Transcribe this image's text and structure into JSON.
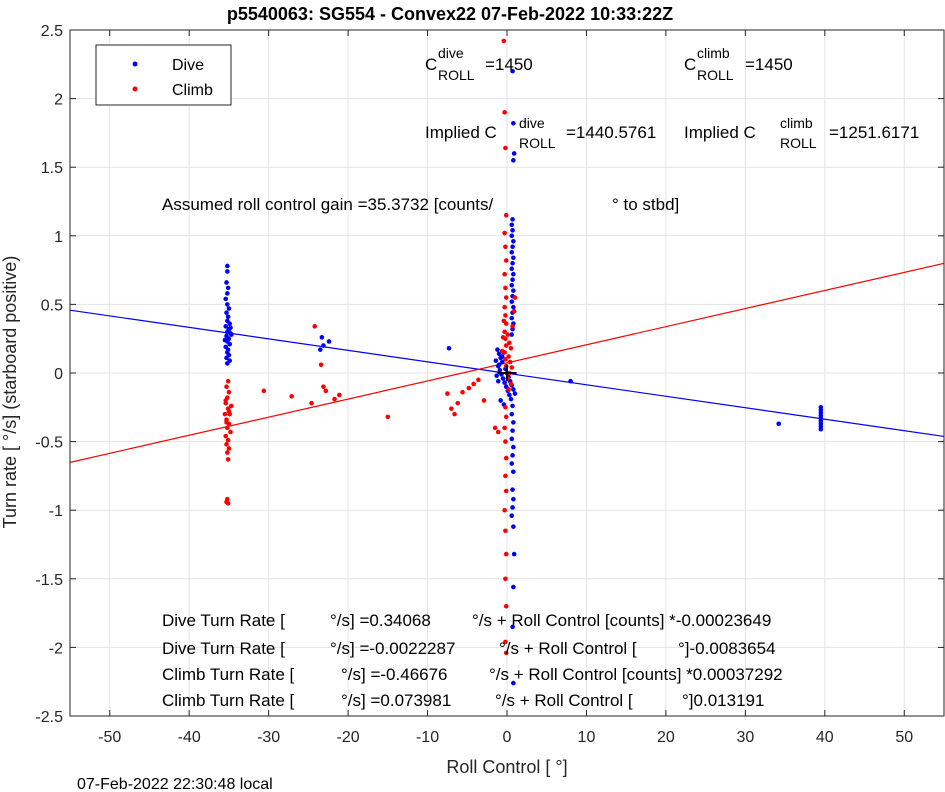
{
  "chart_data": {
    "type": "scatter",
    "title": "p5540063: SG554 - Convex22 07-Feb-2022 10:33:22Z",
    "xlabel": "Roll Control [   °]",
    "ylabel": "Turn rate [   °/s] (starboard positive)",
    "xlim": [
      -55,
      55
    ],
    "ylim": [
      -2.5,
      2.5
    ],
    "xticks": [
      -50,
      -40,
      -30,
      -20,
      -10,
      0,
      10,
      20,
      30,
      40,
      50
    ],
    "yticks": [
      -2.5,
      -2,
      -1.5,
      -1,
      -0.5,
      0,
      0.5,
      1,
      1.5,
      2,
      2.5
    ],
    "xtick_labels": [
      "-50",
      "-40",
      "-30",
      "-20",
      "-10",
      "0",
      "10",
      "20",
      "30",
      "40",
      "50"
    ],
    "ytick_labels": [
      "-2.5",
      "-2",
      "-1.5",
      "-1",
      "-0.5",
      "0",
      "0.5",
      "1",
      "1.5",
      "2",
      "2.5"
    ],
    "grid": true,
    "legend_position": "top-left",
    "footer": "07-Feb-2022 22:30:48 local",
    "legend": [
      {
        "name": "Dive",
        "color": "#0000ff"
      },
      {
        "name": "Climb",
        "color": "#ff0000"
      }
    ],
    "series": [
      {
        "name": "Dive",
        "color": "#0000ff",
        "points": [
          [
            -35.2,
            0.78
          ],
          [
            -35.2,
            0.74
          ],
          [
            -35.3,
            0.66
          ],
          [
            -35.1,
            0.62
          ],
          [
            -35.2,
            0.58
          ],
          [
            -35.4,
            0.54
          ],
          [
            -35.2,
            0.5
          ],
          [
            -35.0,
            0.47
          ],
          [
            -35.3,
            0.44
          ],
          [
            -35.1,
            0.41
          ],
          [
            -35.2,
            0.38
          ],
          [
            -34.9,
            0.36
          ],
          [
            -35.4,
            0.34
          ],
          [
            -35.0,
            0.32
          ],
          [
            -35.2,
            0.3
          ],
          [
            -34.8,
            0.29
          ],
          [
            -35.3,
            0.27
          ],
          [
            -35.0,
            0.25
          ],
          [
            -35.2,
            0.23
          ],
          [
            -34.9,
            0.21
          ],
          [
            -35.4,
            0.19
          ],
          [
            -35.1,
            0.17
          ],
          [
            -35.2,
            0.15
          ],
          [
            -35.0,
            0.13
          ],
          [
            -35.3,
            0.11
          ],
          [
            -34.8,
            0.33
          ],
          [
            -34.7,
            0.28
          ],
          [
            -35.5,
            0.24
          ],
          [
            -34.9,
            0.09
          ],
          [
            -35.2,
            0.07
          ],
          [
            -23.3,
            0.26
          ],
          [
            -23.1,
            0.2
          ],
          [
            -23.5,
            0.17
          ],
          [
            -22.4,
            0.23
          ],
          [
            -7.3,
            0.18
          ],
          [
            -1.2,
            0.17
          ],
          [
            -1.0,
            0.14
          ],
          [
            -0.8,
            0.11
          ],
          [
            -0.6,
            0.08
          ],
          [
            -1.1,
            0.05
          ],
          [
            -0.9,
            0.02
          ],
          [
            -0.7,
            -0.01
          ],
          [
            -0.5,
            -0.04
          ],
          [
            -0.3,
            -0.07
          ],
          [
            -0.1,
            -0.1
          ],
          [
            0.1,
            -0.13
          ],
          [
            0.3,
            -0.16
          ],
          [
            0.5,
            -0.19
          ],
          [
            -1.3,
            -0.02
          ],
          [
            -1.0,
            0.06
          ],
          [
            -0.6,
            0.12
          ],
          [
            -0.4,
            0.15
          ],
          [
            -0.2,
            0.03
          ],
          [
            0.0,
            0.0
          ],
          [
            0.2,
            -0.03
          ],
          [
            0.4,
            -0.06
          ],
          [
            0.6,
            -0.09
          ],
          [
            0.8,
            -0.12
          ],
          [
            1.0,
            -0.15
          ],
          [
            -0.8,
            -0.2
          ],
          [
            -0.4,
            -0.23
          ],
          [
            -1.4,
            0.09
          ],
          [
            -1.1,
            -0.06
          ],
          [
            0.7,
            2.2
          ],
          [
            0.8,
            1.82
          ],
          [
            0.9,
            1.6
          ],
          [
            0.8,
            1.55
          ],
          [
            0.7,
            1.12
          ],
          [
            0.6,
            1.08
          ],
          [
            0.7,
            1.04
          ],
          [
            0.6,
            1.0
          ],
          [
            0.8,
            0.96
          ],
          [
            0.7,
            0.92
          ],
          [
            0.6,
            0.88
          ],
          [
            0.8,
            0.84
          ],
          [
            0.7,
            0.8
          ],
          [
            0.6,
            0.76
          ],
          [
            0.8,
            0.72
          ],
          [
            0.7,
            0.68
          ],
          [
            0.6,
            0.64
          ],
          [
            0.8,
            0.6
          ],
          [
            0.7,
            0.56
          ],
          [
            0.6,
            0.52
          ],
          [
            0.8,
            0.48
          ],
          [
            0.7,
            0.44
          ],
          [
            0.6,
            0.4
          ],
          [
            0.8,
            0.36
          ],
          [
            0.7,
            0.32
          ],
          [
            0.6,
            0.28
          ],
          [
            0.7,
            -0.24
          ],
          [
            0.6,
            -0.3
          ],
          [
            0.8,
            -0.36
          ],
          [
            0.7,
            -0.42
          ],
          [
            0.6,
            -0.48
          ],
          [
            0.8,
            -0.54
          ],
          [
            0.7,
            -0.6
          ],
          [
            0.6,
            -0.66
          ],
          [
            0.8,
            -0.72
          ],
          [
            0.7,
            -0.85
          ],
          [
            0.8,
            -0.92
          ],
          [
            0.7,
            -0.98
          ],
          [
            0.6,
            -1.04
          ],
          [
            0.8,
            -1.12
          ],
          [
            0.9,
            -1.32
          ],
          [
            0.8,
            -1.56
          ],
          [
            0.7,
            -1.85
          ],
          [
            0.8,
            -2.26
          ],
          [
            8.0,
            -0.06
          ],
          [
            34.2,
            -0.37
          ],
          [
            39.5,
            -0.25
          ],
          [
            39.5,
            -0.27
          ],
          [
            39.5,
            -0.29
          ],
          [
            39.5,
            -0.31
          ],
          [
            39.5,
            -0.33
          ],
          [
            39.5,
            -0.35
          ],
          [
            39.5,
            -0.37
          ],
          [
            39.5,
            -0.39
          ],
          [
            39.5,
            -0.41
          ]
        ],
        "fit": {
          "slope": -0.0083654,
          "intercept": -0.0022287
        }
      },
      {
        "name": "Climb",
        "color": "#ff0000",
        "points": [
          [
            -35.1,
            -0.06
          ],
          [
            -35.3,
            -0.1
          ],
          [
            -35.0,
            -0.14
          ],
          [
            -35.2,
            -0.18
          ],
          [
            -35.4,
            -0.22
          ],
          [
            -35.1,
            -0.26
          ],
          [
            -34.9,
            -0.3
          ],
          [
            -35.3,
            -0.34
          ],
          [
            -35.0,
            -0.37
          ],
          [
            -35.2,
            -0.4
          ],
          [
            -34.8,
            -0.43
          ],
          [
            -35.4,
            -0.46
          ],
          [
            -35.1,
            -0.49
          ],
          [
            -35.3,
            -0.52
          ],
          [
            -35.0,
            -0.55
          ],
          [
            -35.2,
            -0.58
          ],
          [
            -35.1,
            -0.63
          ],
          [
            -35.3,
            -0.36
          ],
          [
            -35.5,
            -0.3
          ],
          [
            -34.7,
            -0.24
          ],
          [
            -35.2,
            -0.92
          ],
          [
            -35.1,
            -0.95
          ],
          [
            -35.3,
            -0.94
          ],
          [
            -35.0,
            -0.28
          ],
          [
            -35.4,
            -0.2
          ],
          [
            -30.6,
            -0.13
          ],
          [
            -27.1,
            -0.17
          ],
          [
            -24.6,
            -0.22
          ],
          [
            -24.2,
            0.34
          ],
          [
            -23.4,
            0.06
          ],
          [
            -23.1,
            -0.1
          ],
          [
            -22.8,
            -0.13
          ],
          [
            -21.7,
            -0.19
          ],
          [
            -21.1,
            -0.16
          ],
          [
            -15.0,
            -0.32
          ],
          [
            -7.5,
            -0.15
          ],
          [
            -7.0,
            -0.26
          ],
          [
            -6.6,
            -0.3
          ],
          [
            -6.2,
            -0.22
          ],
          [
            -5.6,
            -0.14
          ],
          [
            -4.8,
            -0.11
          ],
          [
            -4.2,
            -0.08
          ],
          [
            -3.6,
            -0.05
          ],
          [
            -2.9,
            -0.2
          ],
          [
            -1.5,
            -0.4
          ],
          [
            -1.1,
            -0.43
          ],
          [
            -0.4,
            2.42
          ],
          [
            -0.3,
            1.9
          ],
          [
            -0.2,
            1.64
          ],
          [
            -0.1,
            1.15
          ],
          [
            -0.3,
            1.02
          ],
          [
            -0.2,
            0.92
          ],
          [
            -0.1,
            0.82
          ],
          [
            -0.3,
            0.72
          ],
          [
            -0.2,
            0.62
          ],
          [
            -0.1,
            0.55
          ],
          [
            -0.3,
            0.48
          ],
          [
            -0.2,
            0.42
          ],
          [
            -0.1,
            0.36
          ],
          [
            -0.3,
            0.3
          ],
          [
            -0.2,
            0.25
          ],
          [
            -0.1,
            0.2
          ],
          [
            -0.3,
            0.15
          ],
          [
            -0.2,
            0.1
          ],
          [
            -0.1,
            0.05
          ],
          [
            0.1,
            0.28
          ],
          [
            0.3,
            0.22
          ],
          [
            0.5,
            0.18
          ],
          [
            0.2,
            0.12
          ],
          [
            0.4,
            0.08
          ],
          [
            0.6,
            0.04
          ],
          [
            0.3,
            0.0
          ],
          [
            0.1,
            -0.04
          ],
          [
            0.5,
            -0.08
          ],
          [
            0.2,
            -0.12
          ],
          [
            -0.4,
            0.38
          ],
          [
            -0.5,
            0.26
          ],
          [
            -0.6,
            0.16
          ],
          [
            0.7,
            0.34
          ],
          [
            0.9,
            0.45
          ],
          [
            1.0,
            0.55
          ],
          [
            -0.2,
            -0.25
          ],
          [
            -0.1,
            -0.32
          ],
          [
            -0.3,
            -0.4
          ],
          [
            -0.2,
            -0.5
          ],
          [
            -0.1,
            -0.62
          ],
          [
            -0.2,
            -0.75
          ],
          [
            -0.1,
            -0.86
          ],
          [
            -0.3,
            -1.0
          ],
          [
            -0.2,
            -1.15
          ],
          [
            -0.1,
            -1.32
          ],
          [
            -0.2,
            -1.5
          ],
          [
            -0.1,
            -1.7
          ],
          [
            -0.2,
            -1.96
          ],
          [
            -0.1,
            -2.04
          ]
        ],
        "fit": {
          "slope": 0.013191,
          "intercept": 0.073981
        }
      }
    ],
    "annotations": {
      "c_dive_prefix": "C",
      "c_dive_sup": "dive",
      "c_dive_sub": "ROLL",
      "c_dive_value": "=1450",
      "c_climb_prefix": "C",
      "c_climb_sup": "climb",
      "c_climb_sub": "ROLL",
      "c_climb_value": "=1450",
      "implied_dive_prefix": "Implied C",
      "implied_dive_sup": "dive",
      "implied_dive_sub": "ROLL",
      "implied_dive_value": "=1440.5761",
      "implied_climb_prefix": "Implied C",
      "implied_climb_sup": "climb",
      "implied_climb_sub": "ROLL",
      "implied_climb_value": "=1251.6171",
      "gain_text": "Assumed roll control gain =35.3732 [counts/",
      "gain_unit": "° to stbd]",
      "fit_lines": [
        [
          "Dive Turn Rate [",
          "°/s] =0.34068",
          "°/s + Roll Control [counts] *-0.00023649"
        ],
        [
          "Dive Turn Rate [",
          "°/s] =-0.0022287",
          "°/s + Roll Control [",
          "°]-0.0083654"
        ],
        [
          "Climb Turn Rate [",
          "°/s] =-0.46676",
          "°/s + Roll Control [counts] *0.00037292"
        ],
        [
          "Climb Turn Rate [",
          "°/s] =0.073981",
          "°/s + Roll Control [",
          "°]0.013191"
        ]
      ]
    }
  }
}
